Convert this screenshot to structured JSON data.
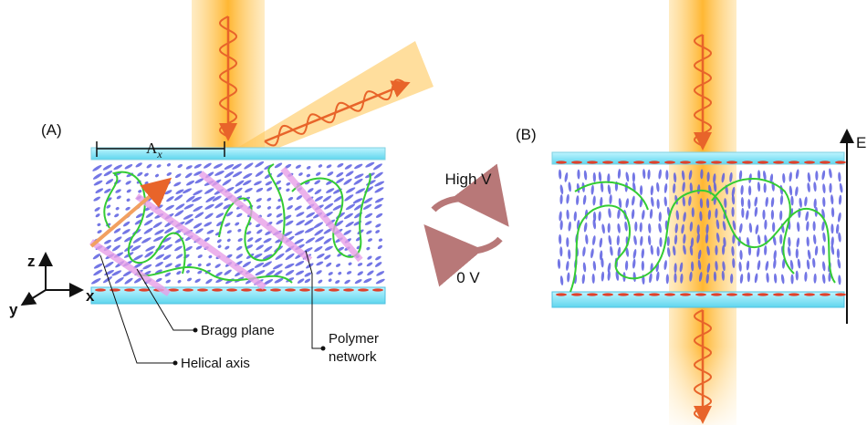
{
  "panels": {
    "a": "(A)",
    "b": "(B)"
  },
  "lambda": {
    "symbol": "Λ",
    "subscript": "x"
  },
  "switch": {
    "high": "High V",
    "low": "0 V"
  },
  "field": "E",
  "axes": {
    "z": "z",
    "x": "x",
    "y": "y"
  },
  "callouts": {
    "bragg": "Bragg plane",
    "helical": "Helical axis",
    "polymer": [
      "Polymer",
      "network"
    ]
  }
}
